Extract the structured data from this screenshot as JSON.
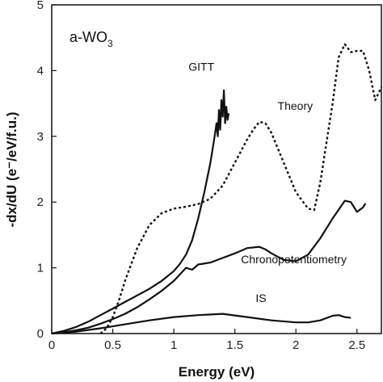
{
  "chart_data": {
    "type": "line",
    "title": "a-WO",
    "title_subscript": "3",
    "xlabel": "Energy (eV)",
    "ylabel": "-dx/dU (e⁻/eV/f.u.)",
    "xlim": [
      0,
      2.7
    ],
    "ylim": [
      0,
      5
    ],
    "xticks": [
      "0",
      "0.5",
      "1",
      "1.5",
      "2",
      "2.5"
    ],
    "xtick_values": [
      0,
      0.5,
      1,
      1.5,
      2,
      2.5
    ],
    "yticks": [
      "0",
      "1",
      "2",
      "3",
      "4",
      "5"
    ],
    "ytick_values": [
      0,
      1,
      2,
      3,
      4,
      5
    ],
    "grid": false,
    "legend": "none",
    "series": [
      {
        "name": "GITT",
        "style": "solid",
        "color": "#111111",
        "x": [
          0,
          0.1,
          0.2,
          0.3,
          0.4,
          0.5,
          0.6,
          0.7,
          0.8,
          0.9,
          1.0,
          1.05,
          1.1,
          1.15,
          1.2,
          1.25,
          1.3,
          1.33,
          1.35,
          1.36,
          1.37,
          1.38,
          1.39,
          1.4,
          1.41,
          1.42,
          1.43,
          1.44,
          1.45
        ],
        "y": [
          0,
          0.04,
          0.1,
          0.18,
          0.28,
          0.38,
          0.48,
          0.58,
          0.68,
          0.8,
          0.95,
          1.06,
          1.2,
          1.42,
          1.75,
          2.15,
          2.6,
          2.95,
          3.2,
          3.0,
          3.4,
          3.1,
          3.55,
          3.3,
          3.7,
          3.2,
          3.45,
          3.25,
          3.35
        ]
      },
      {
        "name": "Theory",
        "style": "dashed",
        "color": "#111111",
        "x": [
          0.4,
          0.45,
          0.5,
          0.55,
          0.6,
          0.7,
          0.8,
          0.9,
          1.0,
          1.1,
          1.2,
          1.3,
          1.4,
          1.5,
          1.6,
          1.65,
          1.7,
          1.75,
          1.8,
          1.9,
          2.0,
          2.1,
          2.15,
          2.2,
          2.3,
          2.35,
          2.4,
          2.45,
          2.5,
          2.55,
          2.6,
          2.65,
          2.7
        ],
        "y": [
          0.0,
          0.08,
          0.25,
          0.5,
          0.8,
          1.3,
          1.65,
          1.83,
          1.9,
          1.93,
          1.97,
          2.05,
          2.25,
          2.6,
          2.95,
          3.1,
          3.22,
          3.2,
          3.05,
          2.6,
          2.15,
          1.9,
          1.88,
          2.3,
          3.5,
          4.2,
          4.4,
          4.28,
          4.3,
          4.3,
          4.0,
          3.55,
          3.75
        ]
      },
      {
        "name": "Chronopotentiometry",
        "style": "solid",
        "color": "#111111",
        "x": [
          0,
          0.1,
          0.2,
          0.3,
          0.4,
          0.5,
          0.6,
          0.7,
          0.8,
          0.9,
          1.0,
          1.05,
          1.1,
          1.15,
          1.2,
          1.3,
          1.4,
          1.5,
          1.6,
          1.7,
          1.75,
          1.8,
          1.9,
          2.0,
          2.1,
          2.2,
          2.3,
          2.4,
          2.45,
          2.5,
          2.55,
          2.57
        ],
        "y": [
          0,
          0.02,
          0.05,
          0.09,
          0.15,
          0.22,
          0.3,
          0.4,
          0.52,
          0.65,
          0.8,
          0.9,
          1.0,
          0.97,
          1.05,
          1.08,
          1.15,
          1.22,
          1.3,
          1.32,
          1.28,
          1.22,
          1.12,
          1.1,
          1.2,
          1.45,
          1.75,
          2.02,
          2.0,
          1.85,
          1.92,
          1.98
        ]
      },
      {
        "name": "IS",
        "style": "solid",
        "color": "#111111",
        "x": [
          0,
          0.2,
          0.4,
          0.6,
          0.8,
          1.0,
          1.2,
          1.4,
          1.6,
          1.8,
          2.0,
          2.1,
          2.2,
          2.3,
          2.35,
          2.4,
          2.45
        ],
        "y": [
          0,
          0.03,
          0.08,
          0.14,
          0.2,
          0.25,
          0.28,
          0.3,
          0.25,
          0.2,
          0.17,
          0.17,
          0.2,
          0.27,
          0.28,
          0.25,
          0.24
        ]
      }
    ],
    "annotations": [
      {
        "text": "GITT",
        "x": 1.12,
        "y": 4.0
      },
      {
        "text": "Theory",
        "x": 1.85,
        "y": 3.4
      },
      {
        "text": "Chronopotentiometry",
        "x": 1.55,
        "y": 1.07
      },
      {
        "text": "IS",
        "x": 1.67,
        "y": 0.48
      }
    ]
  }
}
